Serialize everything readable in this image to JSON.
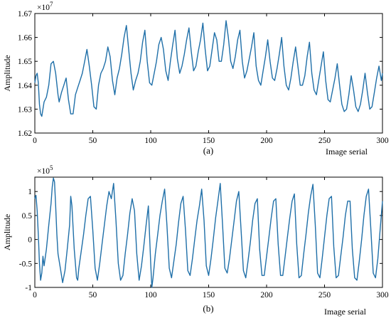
{
  "chart_data": [
    {
      "type": "line",
      "panel_caption": "(a)",
      "xlabel": "Image serial",
      "ylabel": "Amplitude",
      "y_exponent_base": "×10",
      "y_exponent_power": "7",
      "xlim": [
        0,
        300
      ],
      "ylim": [
        1.62,
        1.67
      ],
      "xticks": [
        0,
        50,
        100,
        150,
        200,
        250,
        300
      ],
      "yticks": [
        1.62,
        1.63,
        1.64,
        1.65,
        1.66,
        1.67
      ],
      "ytick_labels": [
        "1.62",
        "1.63",
        "1.64",
        "1.65",
        "1.66",
        "1.67"
      ],
      "grid": false,
      "series": [
        {
          "x": [
            0,
            1,
            2,
            3,
            4,
            5,
            6,
            8,
            10,
            12,
            14,
            16,
            18,
            20,
            21,
            23,
            25,
            27,
            29,
            31,
            33,
            35,
            37,
            39,
            41,
            43,
            45,
            47,
            49,
            51,
            53,
            55,
            57,
            59,
            61,
            63,
            65,
            67,
            69,
            71,
            73,
            75,
            77,
            79,
            81,
            83,
            85,
            87,
            89,
            91,
            93,
            95,
            97,
            99,
            101,
            103,
            105,
            107,
            109,
            111,
            113,
            115,
            117,
            119,
            121,
            123,
            125,
            127,
            129,
            131,
            133,
            135,
            137,
            139,
            141,
            143,
            145,
            147,
            149,
            151,
            153,
            155,
            157,
            159,
            161,
            163,
            165,
            167,
            169,
            171,
            173,
            175,
            177,
            179,
            181,
            183,
            185,
            187,
            189,
            191,
            193,
            195,
            197,
            199,
            201,
            203,
            205,
            207,
            209,
            211,
            213,
            215,
            217,
            219,
            221,
            223,
            225,
            227,
            229,
            231,
            233,
            235,
            237,
            239,
            241,
            243,
            245,
            247,
            249,
            251,
            253,
            255,
            257,
            259,
            261,
            263,
            265,
            267,
            269,
            271,
            273,
            275,
            277,
            279,
            281,
            283,
            285,
            287,
            289,
            291,
            293,
            295,
            297,
            299,
            300
          ],
          "y": [
            1.641,
            1.644,
            1.645,
            1.641,
            1.632,
            1.628,
            1.627,
            1.633,
            1.635,
            1.64,
            1.649,
            1.65,
            1.645,
            1.636,
            1.633,
            1.637,
            1.64,
            1.643,
            1.634,
            1.628,
            1.628,
            1.636,
            1.639,
            1.642,
            1.645,
            1.65,
            1.655,
            1.648,
            1.64,
            1.631,
            1.63,
            1.64,
            1.645,
            1.647,
            1.65,
            1.656,
            1.652,
            1.642,
            1.636,
            1.643,
            1.647,
            1.653,
            1.66,
            1.665,
            1.655,
            1.645,
            1.638,
            1.642,
            1.645,
            1.65,
            1.658,
            1.663,
            1.65,
            1.641,
            1.64,
            1.645,
            1.65,
            1.657,
            1.66,
            1.655,
            1.646,
            1.642,
            1.65,
            1.657,
            1.663,
            1.651,
            1.645,
            1.648,
            1.653,
            1.659,
            1.664,
            1.654,
            1.646,
            1.648,
            1.654,
            1.659,
            1.666,
            1.655,
            1.646,
            1.648,
            1.655,
            1.662,
            1.659,
            1.65,
            1.65,
            1.657,
            1.667,
            1.66,
            1.65,
            1.647,
            1.652,
            1.659,
            1.663,
            1.65,
            1.643,
            1.646,
            1.651,
            1.656,
            1.662,
            1.648,
            1.642,
            1.64,
            1.646,
            1.652,
            1.659,
            1.65,
            1.643,
            1.642,
            1.647,
            1.653,
            1.66,
            1.648,
            1.64,
            1.638,
            1.643,
            1.65,
            1.656,
            1.648,
            1.64,
            1.64,
            1.644,
            1.652,
            1.658,
            1.645,
            1.638,
            1.636,
            1.642,
            1.648,
            1.654,
            1.642,
            1.634,
            1.633,
            1.638,
            1.643,
            1.649,
            1.64,
            1.632,
            1.629,
            1.63,
            1.636,
            1.644,
            1.638,
            1.631,
            1.629,
            1.632,
            1.638,
            1.645,
            1.637,
            1.63,
            1.631,
            1.637,
            1.643,
            1.648,
            1.642,
            1.645
          ]
        }
      ]
    },
    {
      "type": "line",
      "panel_caption": "(b)",
      "xlabel": "Image serial",
      "ylabel": "Amplitude",
      "y_exponent_base": "×10",
      "y_exponent_power": "5",
      "xlim": [
        0,
        300
      ],
      "ylim": [
        -1,
        1.3
      ],
      "xticks": [
        0,
        50,
        100,
        150,
        200,
        250,
        300
      ],
      "yticks": [
        -1,
        -0.5,
        0,
        0.5,
        1
      ],
      "ytick_labels": [
        "-1",
        "-0.5",
        "0",
        "0.5",
        "1"
      ],
      "grid": false,
      "series": [
        {
          "x": [
            0,
            1,
            2,
            3,
            4,
            5,
            6,
            7,
            8,
            10,
            12,
            14,
            15,
            16,
            17,
            18,
            19,
            20,
            22,
            24,
            26,
            28,
            30,
            31,
            32,
            34,
            36,
            37,
            38,
            40,
            42,
            44,
            46,
            48,
            50,
            52,
            54,
            56,
            58,
            60,
            62,
            64,
            66,
            68,
            70,
            72,
            74,
            76,
            78,
            80,
            82,
            84,
            86,
            88,
            90,
            92,
            94,
            96,
            98,
            100,
            101,
            102,
            104,
            106,
            108,
            110,
            112,
            114,
            116,
            118,
            120,
            122,
            124,
            126,
            128,
            130,
            132,
            134,
            136,
            138,
            140,
            142,
            144,
            146,
            148,
            150,
            152,
            154,
            156,
            158,
            160,
            162,
            164,
            166,
            168,
            170,
            172,
            174,
            176,
            178,
            180,
            182,
            184,
            186,
            188,
            190,
            192,
            194,
            196,
            198,
            200,
            202,
            204,
            206,
            208,
            210,
            212,
            214,
            216,
            218,
            220,
            222,
            224,
            226,
            228,
            230,
            232,
            234,
            236,
            238,
            240,
            242,
            244,
            246,
            248,
            250,
            252,
            254,
            256,
            258,
            260,
            262,
            264,
            266,
            268,
            270,
            272,
            274,
            276,
            278,
            280,
            282,
            284,
            286,
            288,
            290,
            292,
            294,
            296,
            298,
            300
          ],
          "y": [
            0.85,
            0.92,
            0.6,
            0.1,
            -0.5,
            -0.85,
            -0.7,
            -0.35,
            -0.55,
            -0.2,
            0.3,
            0.75,
            1.1,
            1.28,
            1.2,
            0.7,
            0.1,
            -0.3,
            -0.6,
            -0.9,
            -0.65,
            -0.2,
            0.3,
            0.9,
            0.7,
            -0.2,
            -0.8,
            -0.85,
            -0.6,
            -0.25,
            0.1,
            0.5,
            0.85,
            0.9,
            0.2,
            -0.6,
            -0.85,
            -0.5,
            -0.1,
            0.3,
            0.7,
            1.0,
            0.85,
            1.17,
            0.4,
            -0.5,
            -0.85,
            -0.75,
            -0.3,
            0.1,
            0.55,
            0.85,
            0.6,
            -0.3,
            -0.85,
            -0.55,
            -0.15,
            0.3,
            0.7,
            -0.5,
            -1.0,
            -0.8,
            -0.3,
            0.1,
            0.5,
            0.8,
            1.05,
            0.3,
            -0.6,
            -0.8,
            -0.45,
            -0.1,
            0.35,
            0.75,
            0.9,
            0.2,
            -0.65,
            -0.75,
            -0.4,
            0.0,
            0.4,
            0.7,
            1.05,
            0.4,
            -0.55,
            -0.75,
            -0.4,
            0.0,
            0.45,
            0.8,
            1.17,
            0.3,
            -0.6,
            -0.7,
            -0.4,
            0.0,
            0.4,
            0.8,
            1.0,
            0.2,
            -0.65,
            -0.8,
            -0.45,
            -0.05,
            0.4,
            0.75,
            0.85,
            -0.2,
            -0.75,
            -0.75,
            -0.35,
            0.05,
            0.45,
            0.8,
            0.85,
            -0.1,
            -0.75,
            -0.75,
            -0.35,
            0.05,
            0.45,
            0.8,
            0.95,
            -0.1,
            -0.8,
            -0.75,
            -0.3,
            0.1,
            0.55,
            0.9,
            1.15,
            0.3,
            -0.7,
            -0.8,
            -0.4,
            0.05,
            0.5,
            0.85,
            0.9,
            -0.15,
            -0.8,
            -0.75,
            -0.35,
            0.05,
            0.5,
            0.8,
            0.8,
            -0.2,
            -0.8,
            -0.85,
            -0.45,
            0.0,
            0.5,
            0.9,
            1.05,
            0.2,
            -0.7,
            -0.8,
            -0.4,
            0.2,
            0.8
          ]
        }
      ]
    }
  ],
  "colors": {
    "series_line": "#1f6fa8",
    "axes": "#000000",
    "background": "#ffffff"
  }
}
